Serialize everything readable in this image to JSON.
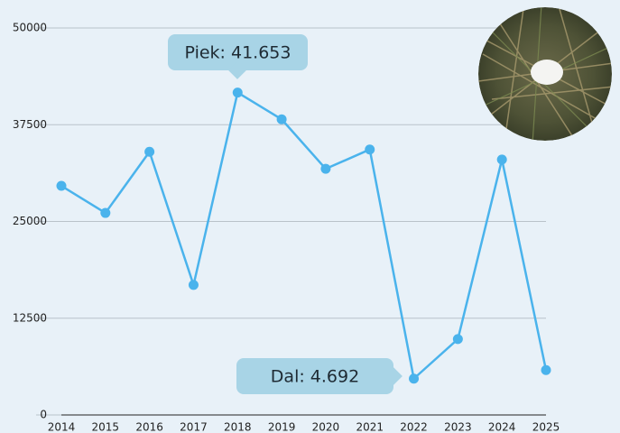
{
  "chart_data": {
    "type": "line",
    "categories": [
      "2014",
      "2015",
      "2016",
      "2017",
      "2018",
      "2019",
      "2020",
      "2021",
      "2022",
      "2023",
      "2024",
      "2025"
    ],
    "series": [
      {
        "name": "",
        "color": "#4ab3ec",
        "values": [
          29600,
          26100,
          34000,
          16800,
          41653,
          38200,
          31800,
          34300,
          4692,
          9800,
          33000,
          5800
        ]
      }
    ],
    "ylim": [
      0,
      50000
    ],
    "yticks": [
      0,
      12500,
      25000,
      37500,
      50000
    ],
    "grid": true,
    "annotations": [
      {
        "text": "Piek: 41.653"
      },
      {
        "text": "Dal: 4.692"
      }
    ]
  }
}
